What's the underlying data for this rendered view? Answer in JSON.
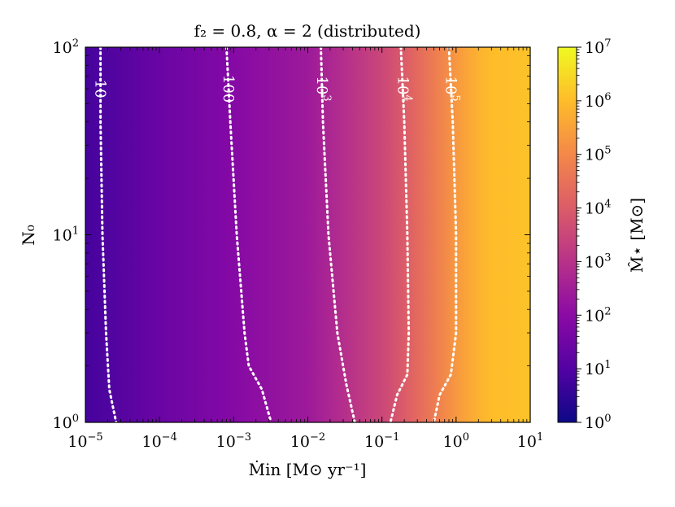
{
  "chart_data": {
    "type": "heatmap",
    "title": "f₂ = 0.8, α = 2 (distributed)",
    "xlabel": "Ṁin [M⊙ yr⁻¹]",
    "ylabel": "N₀",
    "colorbar_label": "M̂⋆ [M⊙]",
    "x_scale": "log",
    "y_scale": "log",
    "xlim": [
      1e-05,
      10
    ],
    "ylim": [
      1,
      100
    ],
    "colorbar_range": [
      1,
      10000000.0
    ],
    "colormap": "plasma",
    "colormap_stops": [
      "#0d0887",
      "#5302a3",
      "#8b0aa5",
      "#b83289",
      "#db5c68",
      "#f48849",
      "#febc2a",
      "#f0f921"
    ],
    "x_ticks": [
      {
        "value": 1e-05,
        "base": "10",
        "exp": "−5"
      },
      {
        "value": 0.0001,
        "base": "10",
        "exp": "−4"
      },
      {
        "value": 0.001,
        "base": "10",
        "exp": "−3"
      },
      {
        "value": 0.01,
        "base": "10",
        "exp": "−2"
      },
      {
        "value": 0.1,
        "base": "10",
        "exp": "−1"
      },
      {
        "value": 1,
        "base": "10",
        "exp": "0"
      },
      {
        "value": 10,
        "base": "10",
        "exp": "1"
      }
    ],
    "y_ticks": [
      {
        "value": 1,
        "base": "10",
        "exp": "0"
      },
      {
        "value": 10,
        "base": "10",
        "exp": "1"
      },
      {
        "value": 100,
        "base": "10",
        "exp": "2"
      }
    ],
    "colorbar_ticks": [
      {
        "value": 1,
        "base": "10",
        "exp": "0"
      },
      {
        "value": 10,
        "base": "10",
        "exp": "1"
      },
      {
        "value": 100,
        "base": "10",
        "exp": "2"
      },
      {
        "value": 1000,
        "base": "10",
        "exp": "3"
      },
      {
        "value": 10000,
        "base": "10",
        "exp": "4"
      },
      {
        "value": 100000,
        "base": "10",
        "exp": "5"
      },
      {
        "value": 1000000,
        "base": "10",
        "exp": "6"
      },
      {
        "value": 10000000,
        "base": "10",
        "exp": "7"
      }
    ],
    "field_samples": {
      "x": [
        1e-05,
        0.0001,
        0.001,
        0.01,
        0.03,
        0.1,
        0.2,
        0.5,
        1,
        2,
        3,
        10
      ],
      "log10_mass": [
        0.8,
        1.4,
        1.9,
        2.4,
        2.9,
        3.5,
        4.0,
        4.7,
        5.3,
        5.8,
        6.0,
        6.1
      ]
    },
    "contours": [
      {
        "level": 10,
        "label": "10",
        "points": [
          [
            1.6e-05,
            100
          ],
          [
            1.6e-05,
            40
          ],
          [
            1.7e-05,
            10
          ],
          [
            1.9e-05,
            3
          ],
          [
            2.1e-05,
            1.5
          ],
          [
            2.6e-05,
            1
          ]
        ]
      },
      {
        "level": 100,
        "label": "100",
        "points": [
          [
            0.0008,
            100
          ],
          [
            0.0009,
            40
          ],
          [
            0.0011,
            10
          ],
          [
            0.0014,
            3
          ],
          [
            0.0016,
            2
          ],
          [
            0.0024,
            1.5
          ],
          [
            0.0032,
            1
          ]
        ]
      },
      {
        "level": 1000,
        "label_base": "10",
        "label_exp": "3",
        "points": [
          [
            0.015,
            100
          ],
          [
            0.016,
            40
          ],
          [
            0.019,
            10
          ],
          [
            0.025,
            3
          ],
          [
            0.033,
            1.6
          ],
          [
            0.043,
            1
          ]
        ]
      },
      {
        "level": 10000,
        "label_base": "10",
        "label_exp": "4",
        "points": [
          [
            0.18,
            100
          ],
          [
            0.2,
            40
          ],
          [
            0.22,
            10
          ],
          [
            0.23,
            3
          ],
          [
            0.22,
            1.8
          ],
          [
            0.16,
            1.4
          ],
          [
            0.13,
            1
          ]
        ]
      },
      {
        "level": 100000,
        "label_base": "10",
        "label_exp": "5",
        "points": [
          [
            0.8,
            100
          ],
          [
            0.9,
            40
          ],
          [
            1.0,
            10
          ],
          [
            1.0,
            3
          ],
          [
            0.85,
            1.8
          ],
          [
            0.6,
            1.4
          ],
          [
            0.5,
            1
          ]
        ]
      }
    ]
  }
}
